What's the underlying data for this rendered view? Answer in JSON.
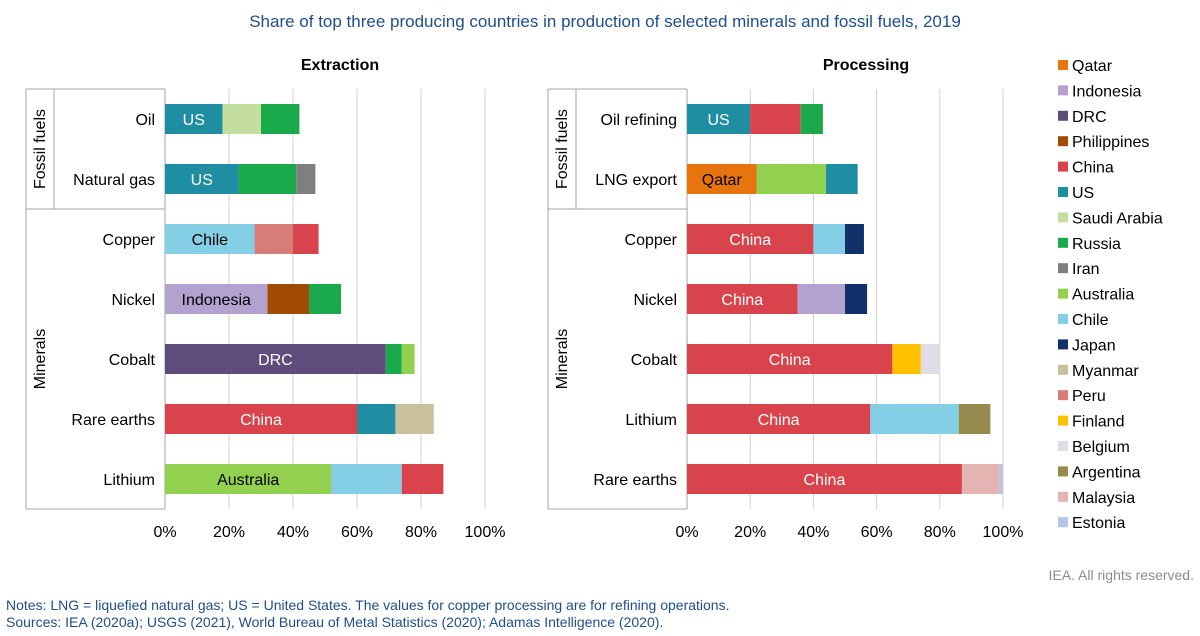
{
  "title": "Share of top three producing countries in production of selected minerals and fossil fuels, 2019",
  "notes": "Notes: LNG = liquefied natural gas; US = United States. The values for copper processing are for refining operations.",
  "sources": "Sources: IEA (2020a); USGS (2021), World Bureau of Metal Statistics (2020); Adamas Intelligence (2020).",
  "credit": "IEA. All rights reserved.",
  "chart_data": {
    "type": "bar",
    "orientation": "horizontal",
    "stacked": true,
    "xlim": [
      0,
      100
    ],
    "x_ticks": [
      "0%",
      "20%",
      "40%",
      "60%",
      "80%",
      "100%"
    ],
    "grid": true,
    "legend_position": "right",
    "colors": {
      "Qatar": "#e8740e",
      "Indonesia": "#b3a2cf",
      "DRC": "#5e4c7d",
      "Philippines": "#a04a04",
      "China": "#d9434b",
      "US": "#1f8ea3",
      "Saudi Arabia": "#c4dea0",
      "Russia": "#1aaa4b",
      "Iran": "#7f7f7f",
      "Australia": "#92d050",
      "Chile": "#84cfe6",
      "Japan": "#12306a",
      "Myanmar": "#c9c09c",
      "Peru": "#d87c7a",
      "Finland": "#ffc000",
      "Belgium": "#e0dde7",
      "Argentina": "#978a4e",
      "Malaysia": "#e3b4b2",
      "Estonia": "#b4c7e7"
    },
    "legend": [
      "Qatar",
      "Indonesia",
      "DRC",
      "Philippines",
      "China",
      "US",
      "Saudi Arabia",
      "Russia",
      "Iran",
      "Australia",
      "Chile",
      "Japan",
      "Myanmar",
      "Peru",
      "Finland",
      "Belgium",
      "Argentina",
      "Malaysia",
      "Estonia"
    ],
    "panels": [
      {
        "title": "Extraction",
        "groups": [
          {
            "name": "Fossil fuels",
            "rows": [
              0,
              1
            ]
          },
          {
            "name": "Minerals",
            "rows": [
              2,
              6
            ]
          }
        ],
        "rows": [
          {
            "label": "Oil",
            "segments": [
              {
                "country": "US",
                "value": 18,
                "label": "US"
              },
              {
                "country": "Saudi Arabia",
                "value": 12
              },
              {
                "country": "Russia",
                "value": 12
              }
            ]
          },
          {
            "label": "Natural gas",
            "segments": [
              {
                "country": "US",
                "value": 23,
                "label": "US"
              },
              {
                "country": "Russia",
                "value": 18
              },
              {
                "country": "Iran",
                "value": 6
              }
            ]
          },
          {
            "label": "Copper",
            "segments": [
              {
                "country": "Chile",
                "value": 28,
                "label": "Chile"
              },
              {
                "country": "Peru",
                "value": 12
              },
              {
                "country": "China",
                "value": 8
              }
            ]
          },
          {
            "label": "Nickel",
            "segments": [
              {
                "country": "Indonesia",
                "value": 32,
                "label": "Indonesia"
              },
              {
                "country": "Philippines",
                "value": 13
              },
              {
                "country": "Russia",
                "value": 10
              }
            ]
          },
          {
            "label": "Cobalt",
            "segments": [
              {
                "country": "DRC",
                "value": 69,
                "label": "DRC"
              },
              {
                "country": "Russia",
                "value": 5
              },
              {
                "country": "Australia",
                "value": 4
              }
            ]
          },
          {
            "label": "Rare earths",
            "segments": [
              {
                "country": "China",
                "value": 60,
                "label": "China"
              },
              {
                "country": "US",
                "value": 12
              },
              {
                "country": "Myanmar",
                "value": 12
              }
            ]
          },
          {
            "label": "Lithium",
            "segments": [
              {
                "country": "Australia",
                "value": 52,
                "label": "Australia"
              },
              {
                "country": "Chile",
                "value": 22
              },
              {
                "country": "China",
                "value": 13
              }
            ]
          }
        ]
      },
      {
        "title": "Processing",
        "groups": [
          {
            "name": "Fossil fuels",
            "rows": [
              0,
              1
            ]
          },
          {
            "name": "Minerals",
            "rows": [
              2,
              6
            ]
          }
        ],
        "rows": [
          {
            "label": "Oil refining",
            "segments": [
              {
                "country": "US",
                "value": 20,
                "label": "US"
              },
              {
                "country": "China",
                "value": 16
              },
              {
                "country": "Russia",
                "value": 7
              }
            ]
          },
          {
            "label": "LNG export",
            "segments": [
              {
                "country": "Qatar",
                "value": 22,
                "label": "Qatar"
              },
              {
                "country": "Australia",
                "value": 22
              },
              {
                "country": "US",
                "value": 10
              }
            ]
          },
          {
            "label": "Copper",
            "segments": [
              {
                "country": "China",
                "value": 40,
                "label": "China"
              },
              {
                "country": "Chile",
                "value": 10
              },
              {
                "country": "Japan",
                "value": 6
              }
            ]
          },
          {
            "label": "Nickel",
            "segments": [
              {
                "country": "China",
                "value": 35,
                "label": "China"
              },
              {
                "country": "Indonesia",
                "value": 15
              },
              {
                "country": "Japan",
                "value": 7
              }
            ]
          },
          {
            "label": "Cobalt",
            "segments": [
              {
                "country": "China",
                "value": 65,
                "label": "China"
              },
              {
                "country": "Finland",
                "value": 9
              },
              {
                "country": "Belgium",
                "value": 6
              }
            ]
          },
          {
            "label": "Lithium",
            "segments": [
              {
                "country": "China",
                "value": 58,
                "label": "China"
              },
              {
                "country": "Chile",
                "value": 28
              },
              {
                "country": "Argentina",
                "value": 10
              }
            ]
          },
          {
            "label": "Rare earths",
            "segments": [
              {
                "country": "China",
                "value": 87,
                "label": "China"
              },
              {
                "country": "Malaysia",
                "value": 12
              },
              {
                "country": "Estonia",
                "value": 1
              }
            ]
          }
        ]
      }
    ]
  }
}
